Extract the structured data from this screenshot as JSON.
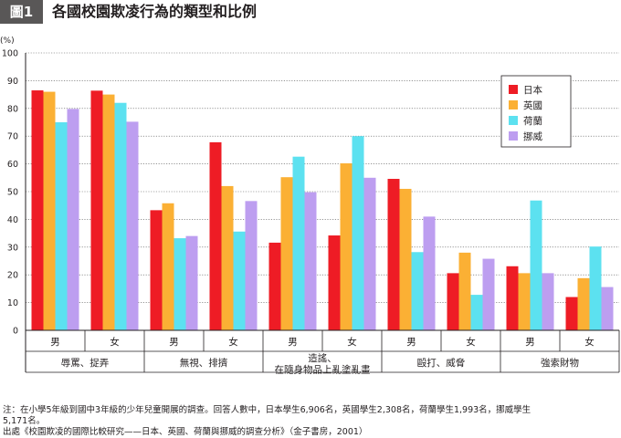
{
  "header": {
    "tag": "圖1",
    "title": "各國校園欺凌行為的類型和比例"
  },
  "colors": {
    "japan": "#ee1c25",
    "uk": "#fbb034",
    "netherlands": "#5ce1f0",
    "norway": "#bd9ef0"
  },
  "chart_data": {
    "type": "bar",
    "title": "各國校園欺凌行為的類型和比例",
    "ylabel": "(%)",
    "ylim": [
      0,
      100
    ],
    "yticks": [
      0,
      10,
      20,
      30,
      40,
      50,
      60,
      70,
      80,
      90,
      100
    ],
    "grid": true,
    "legend_position": "top-right",
    "categories": [
      "男",
      "女",
      "男",
      "女",
      "男",
      "女",
      "男",
      "女",
      "男",
      "女"
    ],
    "groups": [
      {
        "label": [
          "辱罵、捉弄"
        ]
      },
      {
        "label": [
          "無視、排擠"
        ]
      },
      {
        "label": [
          "造謠、",
          "在隨身物品上亂塗亂畫"
        ]
      },
      {
        "label": [
          "毆打、威脅"
        ]
      },
      {
        "label": [
          "強索財物"
        ]
      }
    ],
    "series": [
      {
        "name": "日本",
        "color": "#ee1c25",
        "values": [
          86.5,
          86.4,
          43.3,
          67.8,
          31.6,
          34.2,
          54.6,
          20.6,
          23.1,
          12.0
        ]
      },
      {
        "name": "英國",
        "color": "#fbb034",
        "values": [
          86.0,
          85.0,
          45.8,
          52.0,
          55.2,
          60.2,
          51.0,
          28.0,
          20.6,
          18.8
        ]
      },
      {
        "name": "荷蘭",
        "color": "#5ce1f0",
        "values": [
          75.0,
          82.0,
          33.2,
          35.6,
          62.6,
          70.0,
          28.2,
          12.8,
          46.8,
          30.2
        ]
      },
      {
        "name": "挪威",
        "color": "#bd9ef0",
        "values": [
          79.8,
          75.2,
          34.0,
          46.6,
          49.8,
          55.0,
          41.0,
          25.8,
          20.6,
          15.6
        ]
      }
    ]
  },
  "notes": {
    "line1": "注：在小學5年級到國中3年級的少年兒童開展的調查。回答人數中，日本學生6,906名，英國學生2,308名，荷蘭學生1,993名，挪威學生",
    "line2": "5,171名。",
    "line3": "出處《校園欺凌的國際比較研究——日本、英國、荷蘭與挪威的調查分析》（金子書房，2001）"
  }
}
